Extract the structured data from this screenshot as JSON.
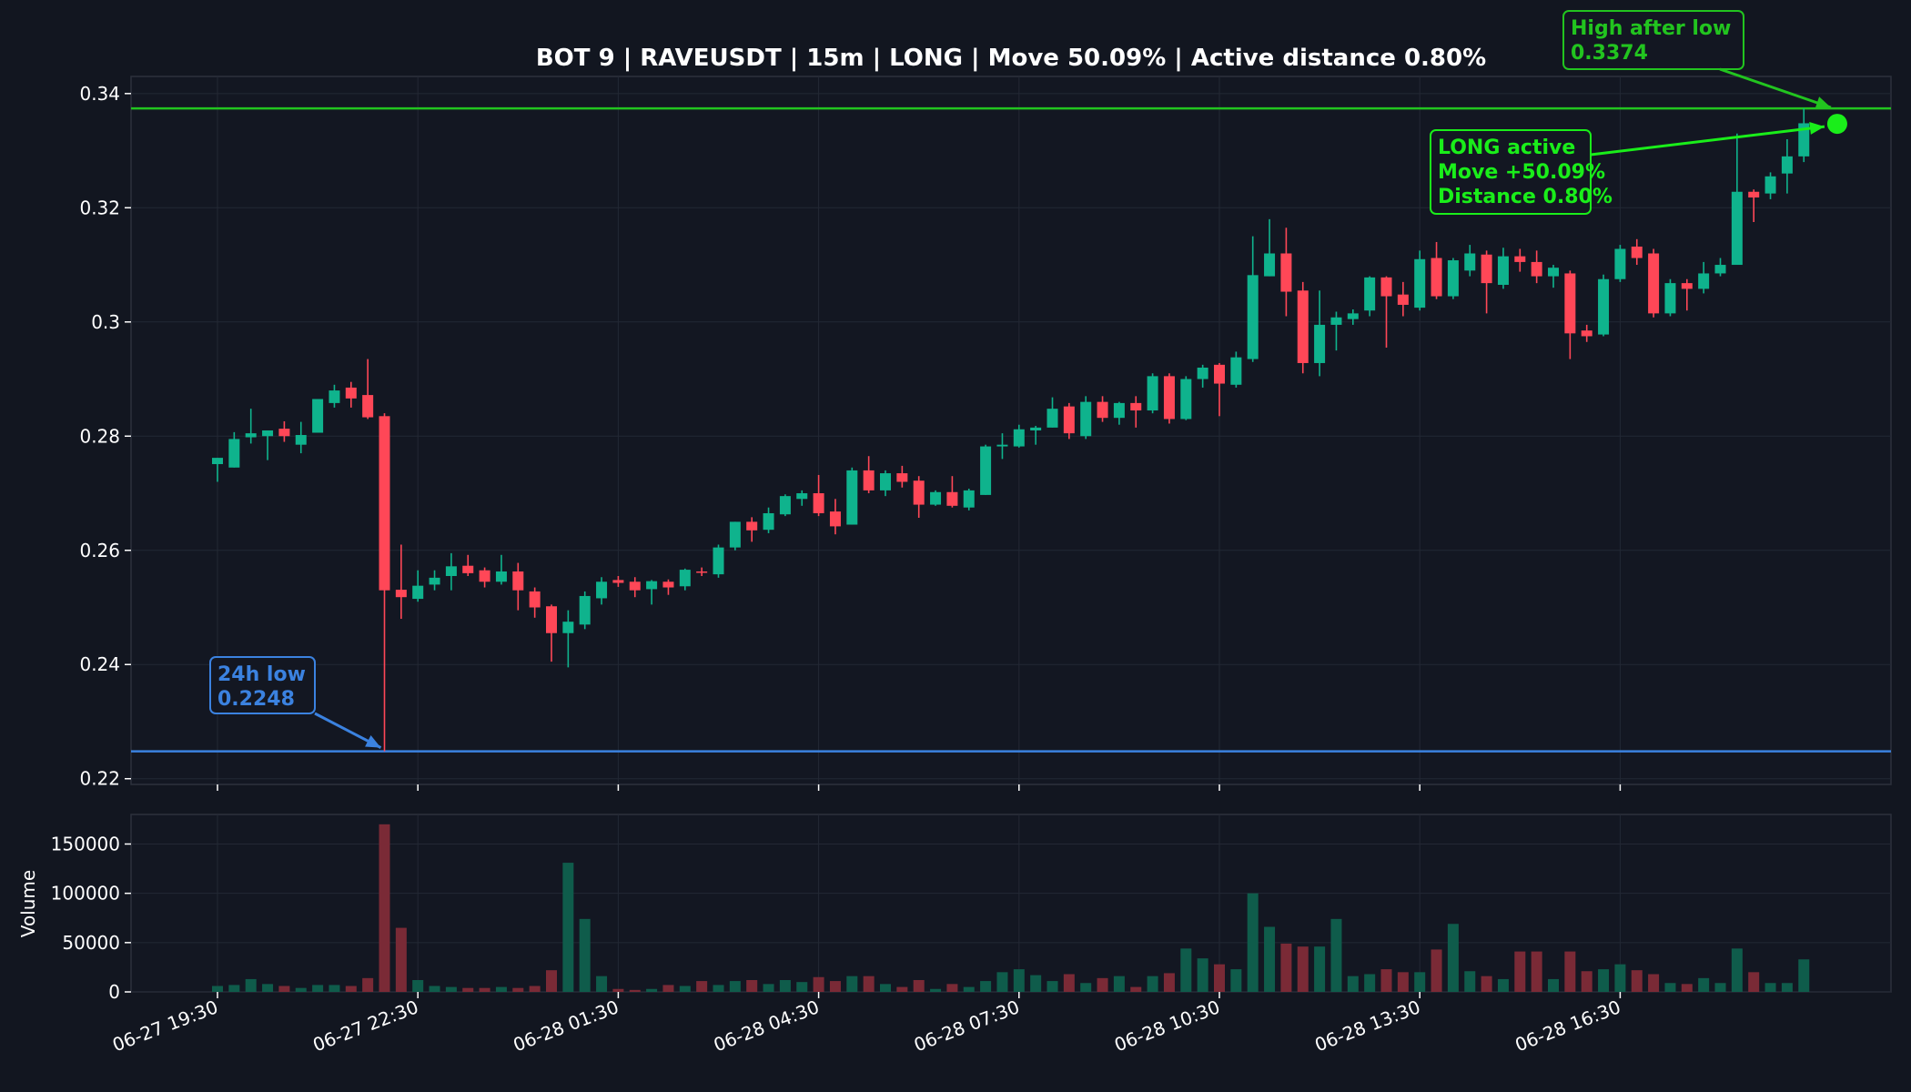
{
  "colors": {
    "background": "#121620",
    "plot_background": "#131722",
    "up": "#0fb38d",
    "down": "#ff4757",
    "grid": "#232834",
    "text": "#ffffff",
    "low_line": "#3b82e0",
    "high_line": "#22c41f",
    "signal": "#1aee1a"
  },
  "chart_data": {
    "type": "candlestick",
    "title": "BOT 9 | RAVEUSDT | 15m | LONG | Move 50.09% | Active distance 0.80%",
    "price_axis": {
      "ylim": [
        0.219,
        0.343
      ],
      "ticks": [
        0.22,
        0.24,
        0.26,
        0.28,
        0.3,
        0.32,
        0.34
      ],
      "tick_labels": [
        "0.22",
        "0.24",
        "0.26",
        "0.28",
        "0.3",
        "0.32",
        "0.34"
      ],
      "grid": true
    },
    "volume_axis": {
      "label": "Volume",
      "ylim": [
        0,
        180000
      ],
      "ticks": [
        0,
        50000,
        100000,
        150000
      ],
      "tick_labels": [
        "0",
        "50000",
        "100000",
        "150000"
      ]
    },
    "x_axis": {
      "tick_labels": [
        "06-27 19:30",
        "06-27 22:30",
        "06-28 01:30",
        "06-28 04:30",
        "06-28 07:30",
        "06-28 10:30",
        "06-28 13:30",
        "06-28 16:30"
      ],
      "tick_bar_index": [
        0,
        12,
        24,
        36,
        48,
        60,
        72,
        84
      ],
      "bar_interval": "15m"
    },
    "candles": [
      {
        "o": 0.2751,
        "h": 0.2762,
        "l": 0.272,
        "c": 0.2762,
        "v": 6000
      },
      {
        "o": 0.2745,
        "h": 0.2807,
        "l": 0.2745,
        "c": 0.2795,
        "v": 7000
      },
      {
        "o": 0.2798,
        "h": 0.2848,
        "l": 0.2787,
        "c": 0.2805,
        "v": 13000
      },
      {
        "o": 0.28,
        "h": 0.281,
        "l": 0.2758,
        "c": 0.281,
        "v": 8000
      },
      {
        "o": 0.2813,
        "h": 0.2826,
        "l": 0.279,
        "c": 0.28,
        "v": 6000
      },
      {
        "o": 0.2785,
        "h": 0.2825,
        "l": 0.277,
        "c": 0.2802,
        "v": 4000
      },
      {
        "o": 0.2806,
        "h": 0.2865,
        "l": 0.2806,
        "c": 0.2865,
        "v": 7000
      },
      {
        "o": 0.2858,
        "h": 0.289,
        "l": 0.285,
        "c": 0.288,
        "v": 7000
      },
      {
        "o": 0.2885,
        "h": 0.2895,
        "l": 0.285,
        "c": 0.2866,
        "v": 6000
      },
      {
        "o": 0.2872,
        "h": 0.2935,
        "l": 0.283,
        "c": 0.2833,
        "v": 14000
      },
      {
        "o": 0.2835,
        "h": 0.284,
        "l": 0.2248,
        "c": 0.253,
        "v": 170000
      },
      {
        "o": 0.2531,
        "h": 0.261,
        "l": 0.248,
        "c": 0.2518,
        "v": 65000
      },
      {
        "o": 0.2515,
        "h": 0.2565,
        "l": 0.251,
        "c": 0.2538,
        "v": 12000
      },
      {
        "o": 0.254,
        "h": 0.2565,
        "l": 0.253,
        "c": 0.2552,
        "v": 6000
      },
      {
        "o": 0.2555,
        "h": 0.2595,
        "l": 0.253,
        "c": 0.2572,
        "v": 5000
      },
      {
        "o": 0.2573,
        "h": 0.2592,
        "l": 0.2555,
        "c": 0.256,
        "v": 4000
      },
      {
        "o": 0.2565,
        "h": 0.257,
        "l": 0.2535,
        "c": 0.2545,
        "v": 4000
      },
      {
        "o": 0.2545,
        "h": 0.2592,
        "l": 0.254,
        "c": 0.2563,
        "v": 5000
      },
      {
        "o": 0.2563,
        "h": 0.2578,
        "l": 0.2495,
        "c": 0.253,
        "v": 4000
      },
      {
        "o": 0.2528,
        "h": 0.2535,
        "l": 0.2482,
        "c": 0.25,
        "v": 6000
      },
      {
        "o": 0.2502,
        "h": 0.2505,
        "l": 0.2405,
        "c": 0.2455,
        "v": 22000
      },
      {
        "o": 0.2455,
        "h": 0.2495,
        "l": 0.2395,
        "c": 0.2475,
        "v": 131000
      },
      {
        "o": 0.247,
        "h": 0.2528,
        "l": 0.2462,
        "c": 0.252,
        "v": 74000
      },
      {
        "o": 0.2516,
        "h": 0.2553,
        "l": 0.2505,
        "c": 0.2545,
        "v": 16000
      },
      {
        "o": 0.2548,
        "h": 0.2555,
        "l": 0.2536,
        "c": 0.2543,
        "v": 3000
      },
      {
        "o": 0.2545,
        "h": 0.2553,
        "l": 0.2518,
        "c": 0.253,
        "v": 2000
      },
      {
        "o": 0.2532,
        "h": 0.2548,
        "l": 0.2505,
        "c": 0.2546,
        "v": 3000
      },
      {
        "o": 0.2545,
        "h": 0.2549,
        "l": 0.2522,
        "c": 0.2535,
        "v": 7000
      },
      {
        "o": 0.2537,
        "h": 0.2568,
        "l": 0.253,
        "c": 0.2566,
        "v": 6000
      },
      {
        "o": 0.2563,
        "h": 0.257,
        "l": 0.2555,
        "c": 0.2562,
        "v": 11000
      },
      {
        "o": 0.2558,
        "h": 0.261,
        "l": 0.2552,
        "c": 0.2605,
        "v": 7000
      },
      {
        "o": 0.2605,
        "h": 0.265,
        "l": 0.26,
        "c": 0.265,
        "v": 11000
      },
      {
        "o": 0.265,
        "h": 0.2658,
        "l": 0.2615,
        "c": 0.2635,
        "v": 12000
      },
      {
        "o": 0.2636,
        "h": 0.2675,
        "l": 0.263,
        "c": 0.2665,
        "v": 8000
      },
      {
        "o": 0.2663,
        "h": 0.2698,
        "l": 0.266,
        "c": 0.2695,
        "v": 12000
      },
      {
        "o": 0.269,
        "h": 0.2705,
        "l": 0.2678,
        "c": 0.27,
        "v": 10000
      },
      {
        "o": 0.27,
        "h": 0.2732,
        "l": 0.266,
        "c": 0.2665,
        "v": 15000
      },
      {
        "o": 0.2668,
        "h": 0.269,
        "l": 0.2628,
        "c": 0.2642,
        "v": 11000
      },
      {
        "o": 0.2645,
        "h": 0.2745,
        "l": 0.2645,
        "c": 0.274,
        "v": 16000
      },
      {
        "o": 0.274,
        "h": 0.2765,
        "l": 0.27,
        "c": 0.2705,
        "v": 16000
      },
      {
        "o": 0.2705,
        "h": 0.274,
        "l": 0.2695,
        "c": 0.2735,
        "v": 8000
      },
      {
        "o": 0.2735,
        "h": 0.2748,
        "l": 0.271,
        "c": 0.272,
        "v": 5000
      },
      {
        "o": 0.2722,
        "h": 0.273,
        "l": 0.2657,
        "c": 0.268,
        "v": 12000
      },
      {
        "o": 0.268,
        "h": 0.2705,
        "l": 0.2678,
        "c": 0.2702,
        "v": 3000
      },
      {
        "o": 0.2702,
        "h": 0.273,
        "l": 0.2675,
        "c": 0.2678,
        "v": 8000
      },
      {
        "o": 0.2675,
        "h": 0.2708,
        "l": 0.267,
        "c": 0.2705,
        "v": 5000
      },
      {
        "o": 0.2697,
        "h": 0.2785,
        "l": 0.2697,
        "c": 0.2782,
        "v": 11000
      },
      {
        "o": 0.2782,
        "h": 0.2805,
        "l": 0.276,
        "c": 0.2785,
        "v": 20000
      },
      {
        "o": 0.2782,
        "h": 0.282,
        "l": 0.278,
        "c": 0.2812,
        "v": 23000
      },
      {
        "o": 0.281,
        "h": 0.2818,
        "l": 0.2785,
        "c": 0.2815,
        "v": 17000
      },
      {
        "o": 0.2815,
        "h": 0.2868,
        "l": 0.2815,
        "c": 0.2848,
        "v": 11000
      },
      {
        "o": 0.2852,
        "h": 0.2858,
        "l": 0.2795,
        "c": 0.2805,
        "v": 18000
      },
      {
        "o": 0.28,
        "h": 0.287,
        "l": 0.2795,
        "c": 0.286,
        "v": 9000
      },
      {
        "o": 0.286,
        "h": 0.287,
        "l": 0.2825,
        "c": 0.2832,
        "v": 14000
      },
      {
        "o": 0.2832,
        "h": 0.286,
        "l": 0.282,
        "c": 0.2858,
        "v": 16000
      },
      {
        "o": 0.2858,
        "h": 0.287,
        "l": 0.2815,
        "c": 0.2845,
        "v": 5000
      },
      {
        "o": 0.2845,
        "h": 0.291,
        "l": 0.284,
        "c": 0.2905,
        "v": 16000
      },
      {
        "o": 0.2905,
        "h": 0.291,
        "l": 0.2822,
        "c": 0.283,
        "v": 19000
      },
      {
        "o": 0.283,
        "h": 0.2905,
        "l": 0.2828,
        "c": 0.29,
        "v": 44000
      },
      {
        "o": 0.29,
        "h": 0.2925,
        "l": 0.2885,
        "c": 0.292,
        "v": 34000
      },
      {
        "o": 0.2925,
        "h": 0.2928,
        "l": 0.2835,
        "c": 0.2892,
        "v": 28000
      },
      {
        "o": 0.289,
        "h": 0.2948,
        "l": 0.2885,
        "c": 0.2938,
        "v": 23000
      },
      {
        "o": 0.2935,
        "h": 0.315,
        "l": 0.293,
        "c": 0.3082,
        "v": 100000
      },
      {
        "o": 0.308,
        "h": 0.318,
        "l": 0.308,
        "c": 0.312,
        "v": 66000
      },
      {
        "o": 0.312,
        "h": 0.3165,
        "l": 0.301,
        "c": 0.3053,
        "v": 49000
      },
      {
        "o": 0.3055,
        "h": 0.307,
        "l": 0.291,
        "c": 0.2928,
        "v": 46000
      },
      {
        "o": 0.2928,
        "h": 0.3055,
        "l": 0.2905,
        "c": 0.2995,
        "v": 46000
      },
      {
        "o": 0.2995,
        "h": 0.3018,
        "l": 0.295,
        "c": 0.3008,
        "v": 74000
      },
      {
        "o": 0.3005,
        "h": 0.3022,
        "l": 0.2995,
        "c": 0.3015,
        "v": 16000
      },
      {
        "o": 0.302,
        "h": 0.308,
        "l": 0.301,
        "c": 0.3078,
        "v": 18000
      },
      {
        "o": 0.3078,
        "h": 0.308,
        "l": 0.2955,
        "c": 0.3045,
        "v": 23000
      },
      {
        "o": 0.3048,
        "h": 0.307,
        "l": 0.301,
        "c": 0.303,
        "v": 20000
      },
      {
        "o": 0.3025,
        "h": 0.3125,
        "l": 0.302,
        "c": 0.311,
        "v": 20000
      },
      {
        "o": 0.3112,
        "h": 0.314,
        "l": 0.304,
        "c": 0.3045,
        "v": 43000
      },
      {
        "o": 0.3045,
        "h": 0.3112,
        "l": 0.304,
        "c": 0.3108,
        "v": 69000
      },
      {
        "o": 0.309,
        "h": 0.3135,
        "l": 0.308,
        "c": 0.312,
        "v": 21000
      },
      {
        "o": 0.3118,
        "h": 0.3125,
        "l": 0.3015,
        "c": 0.3068,
        "v": 16000
      },
      {
        "o": 0.3065,
        "h": 0.313,
        "l": 0.3058,
        "c": 0.3115,
        "v": 13000
      },
      {
        "o": 0.3115,
        "h": 0.3128,
        "l": 0.3088,
        "c": 0.3105,
        "v": 41000
      },
      {
        "o": 0.3105,
        "h": 0.3125,
        "l": 0.3068,
        "c": 0.308,
        "v": 41000
      },
      {
        "o": 0.308,
        "h": 0.31,
        "l": 0.306,
        "c": 0.3095,
        "v": 13000
      },
      {
        "o": 0.3085,
        "h": 0.309,
        "l": 0.2935,
        "c": 0.298,
        "v": 41000
      },
      {
        "o": 0.2985,
        "h": 0.2995,
        "l": 0.2965,
        "c": 0.2975,
        "v": 21000
      },
      {
        "o": 0.2978,
        "h": 0.3083,
        "l": 0.2975,
        "c": 0.3075,
        "v": 23000
      },
      {
        "o": 0.3075,
        "h": 0.3135,
        "l": 0.307,
        "c": 0.3128,
        "v": 28000
      },
      {
        "o": 0.3132,
        "h": 0.3145,
        "l": 0.31,
        "c": 0.3112,
        "v": 22000
      },
      {
        "o": 0.312,
        "h": 0.3128,
        "l": 0.3008,
        "c": 0.3015,
        "v": 18000
      },
      {
        "o": 0.3015,
        "h": 0.3075,
        "l": 0.301,
        "c": 0.3068,
        "v": 9000
      },
      {
        "o": 0.3068,
        "h": 0.3075,
        "l": 0.302,
        "c": 0.3058,
        "v": 8000
      },
      {
        "o": 0.3058,
        "h": 0.3105,
        "l": 0.305,
        "c": 0.3085,
        "v": 14000
      },
      {
        "o": 0.3085,
        "h": 0.3112,
        "l": 0.308,
        "c": 0.31,
        "v": 9000
      },
      {
        "o": 0.31,
        "h": 0.333,
        "l": 0.31,
        "c": 0.3228,
        "v": 44000
      },
      {
        "o": 0.3228,
        "h": 0.3232,
        "l": 0.3175,
        "c": 0.3218,
        "v": 20000
      },
      {
        "o": 0.3225,
        "h": 0.3262,
        "l": 0.3215,
        "c": 0.3255,
        "v": 9000
      },
      {
        "o": 0.326,
        "h": 0.332,
        "l": 0.3225,
        "c": 0.329,
        "v": 9000
      },
      {
        "o": 0.329,
        "h": 0.3374,
        "l": 0.328,
        "c": 0.3348,
        "v": 33000
      }
    ],
    "levels": [
      {
        "name": "24h low",
        "value": 0.2248,
        "label_title": "24h low",
        "label_value": "0.2248",
        "color": "#3b82e0",
        "bar_index": 10
      },
      {
        "name": "High after low",
        "value": 0.3374,
        "label_title": "High after low",
        "label_value": "0.3374",
        "color": "#22c41f",
        "bar_index": 97
      }
    ],
    "annotations": [
      {
        "lines": [
          "LONG active",
          "Move +50.09%",
          "Distance 0.80%"
        ],
        "target_bar_index": 97,
        "target_value": 0.3347,
        "color": "#1aee1a"
      }
    ],
    "signal_point": {
      "bar_index": 97,
      "value": 0.3347
    }
  }
}
